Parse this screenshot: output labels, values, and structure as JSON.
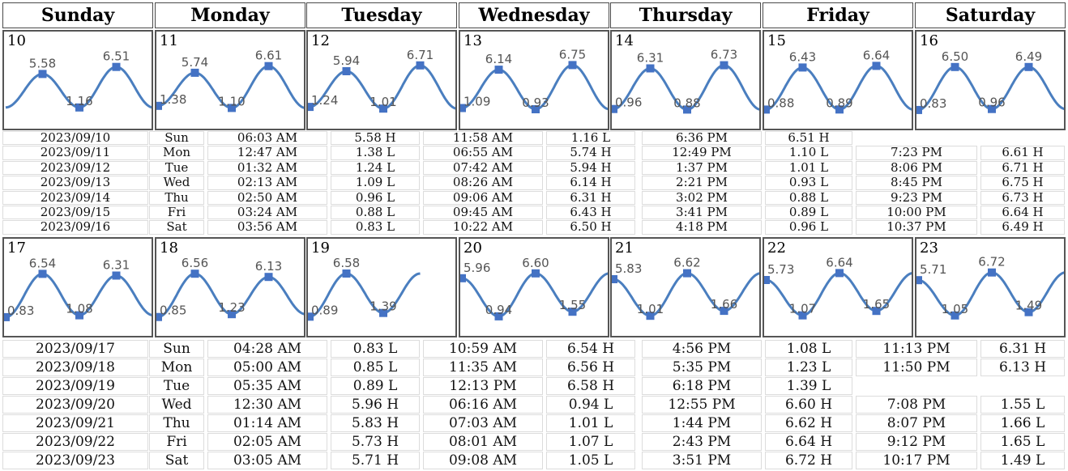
{
  "header": {
    "days": [
      "Sunday",
      "Monday",
      "Tuesday",
      "Wednesday",
      "Thursday",
      "Friday",
      "Saturday"
    ]
  },
  "colors": {
    "curve": "#4a7ebf",
    "marker": "#4472c4",
    "label": "#555555"
  },
  "chart_data": [
    {
      "type": "line",
      "week": 1,
      "panels": [
        {
          "day": "10",
          "points": [
            {
              "value": "5.58",
              "y": 5.58,
              "x": 0.25
            },
            {
              "value": "1.16",
              "y": 1.16,
              "x": 0.5
            },
            {
              "value": "6.51",
              "y": 6.51,
              "x": 0.75
            }
          ]
        },
        {
          "day": "11",
          "points": [
            {
              "value": "1.38",
              "y": 1.38,
              "x": 0
            },
            {
              "value": "5.74",
              "y": 5.74,
              "x": 0.25
            },
            {
              "value": "1.10",
              "y": 1.1,
              "x": 0.5
            },
            {
              "value": "6.61",
              "y": 6.61,
              "x": 0.75
            }
          ]
        },
        {
          "day": "12",
          "points": [
            {
              "value": "1.24",
              "y": 1.24,
              "x": 0
            },
            {
              "value": "5.94",
              "y": 5.94,
              "x": 0.25
            },
            {
              "value": "1.01",
              "y": 1.01,
              "x": 0.5
            },
            {
              "value": "6.71",
              "y": 6.71,
              "x": 0.75
            }
          ]
        },
        {
          "day": "13",
          "points": [
            {
              "value": "1.09",
              "y": 1.09,
              "x": 0
            },
            {
              "value": "6.14",
              "y": 6.14,
              "x": 0.25
            },
            {
              "value": "0.93",
              "y": 0.93,
              "x": 0.5
            },
            {
              "value": "6.75",
              "y": 6.75,
              "x": 0.75
            }
          ]
        },
        {
          "day": "14",
          "points": [
            {
              "value": "0.96",
              "y": 0.96,
              "x": 0
            },
            {
              "value": "6.31",
              "y": 6.31,
              "x": 0.25
            },
            {
              "value": "0.88",
              "y": 0.88,
              "x": 0.5
            },
            {
              "value": "6.73",
              "y": 6.73,
              "x": 0.75
            }
          ]
        },
        {
          "day": "15",
          "points": [
            {
              "value": "0.88",
              "y": 0.88,
              "x": 0
            },
            {
              "value": "6.43",
              "y": 6.43,
              "x": 0.25
            },
            {
              "value": "0.89",
              "y": 0.89,
              "x": 0.5
            },
            {
              "value": "6.64",
              "y": 6.64,
              "x": 0.75
            }
          ]
        },
        {
          "day": "16",
          "points": [
            {
              "value": "0.83",
              "y": 0.83,
              "x": 0
            },
            {
              "value": "6.50",
              "y": 6.5,
              "x": 0.25
            },
            {
              "value": "0.96",
              "y": 0.96,
              "x": 0.5
            },
            {
              "value": "6.49",
              "y": 6.49,
              "x": 0.75
            }
          ]
        }
      ]
    },
    {
      "type": "line",
      "week": 2,
      "panels": [
        {
          "day": "17",
          "points": [
            {
              "value": "0.83",
              "y": 0.83,
              "x": 0
            },
            {
              "value": "6.54",
              "y": 6.54,
              "x": 0.25
            },
            {
              "value": "1.08",
              "y": 1.08,
              "x": 0.5
            },
            {
              "value": "6.31",
              "y": 6.31,
              "x": 0.75
            }
          ]
        },
        {
          "day": "18",
          "points": [
            {
              "value": "0.85",
              "y": 0.85,
              "x": 0
            },
            {
              "value": "6.56",
              "y": 6.56,
              "x": 0.25
            },
            {
              "value": "1.23",
              "y": 1.23,
              "x": 0.5
            },
            {
              "value": "6.13",
              "y": 6.13,
              "x": 0.75
            }
          ]
        },
        {
          "day": "19",
          "points": [
            {
              "value": "0.89",
              "y": 0.89,
              "x": 0
            },
            {
              "value": "6.58",
              "y": 6.58,
              "x": 0.25
            },
            {
              "value": "1.39",
              "y": 1.39,
              "x": 0.5
            }
          ]
        },
        {
          "day": "20",
          "points": [
            {
              "value": "5.96",
              "y": 5.96,
              "x": 0
            },
            {
              "value": "0.94",
              "y": 0.94,
              "x": 0.25
            },
            {
              "value": "6.60",
              "y": 6.6,
              "x": 0.5
            },
            {
              "value": "1.55",
              "y": 1.55,
              "x": 0.75
            }
          ]
        },
        {
          "day": "21",
          "points": [
            {
              "value": "5.83",
              "y": 5.83,
              "x": 0
            },
            {
              "value": "1.01",
              "y": 1.01,
              "x": 0.25
            },
            {
              "value": "6.62",
              "y": 6.62,
              "x": 0.5
            },
            {
              "value": "1.66",
              "y": 1.66,
              "x": 0.75
            }
          ]
        },
        {
          "day": "22",
          "points": [
            {
              "value": "5.73",
              "y": 5.73,
              "x": 0
            },
            {
              "value": "1.07",
              "y": 1.07,
              "x": 0.25
            },
            {
              "value": "6.64",
              "y": 6.64,
              "x": 0.5
            },
            {
              "value": "1.65",
              "y": 1.65,
              "x": 0.75
            }
          ]
        },
        {
          "day": "23",
          "points": [
            {
              "value": "5.71",
              "y": 5.71,
              "x": 0
            },
            {
              "value": "1.05",
              "y": 1.05,
              "x": 0.25
            },
            {
              "value": "6.72",
              "y": 6.72,
              "x": 0.5
            },
            {
              "value": "1.49",
              "y": 1.49,
              "x": 0.75
            }
          ]
        }
      ]
    }
  ],
  "tables": [
    {
      "rows": [
        [
          "2023/09/10",
          "Sun",
          "06:03 AM",
          "5.58 H",
          "11:58 AM",
          "1.16 L",
          "6:36 PM",
          "6.51 H",
          "",
          ""
        ],
        [
          "2023/09/11",
          "Mon",
          "12:47 AM",
          "1.38 L",
          "06:55 AM",
          "5.74 H",
          "12:49 PM",
          "1.10 L",
          "7:23 PM",
          "6.61 H"
        ],
        [
          "2023/09/12",
          "Tue",
          "01:32 AM",
          "1.24 L",
          "07:42 AM",
          "5.94 H",
          "1:37 PM",
          "1.01 L",
          "8:06 PM",
          "6.71 H"
        ],
        [
          "2023/09/13",
          "Wed",
          "02:13 AM",
          "1.09 L",
          "08:26 AM",
          "6.14 H",
          "2:21 PM",
          "0.93 L",
          "8:45 PM",
          "6.75 H"
        ],
        [
          "2023/09/14",
          "Thu",
          "02:50 AM",
          "0.96 L",
          "09:06 AM",
          "6.31 H",
          "3:02 PM",
          "0.88 L",
          "9:23 PM",
          "6.73 H"
        ],
        [
          "2023/09/15",
          "Fri",
          "03:24 AM",
          "0.88 L",
          "09:45 AM",
          "6.43 H",
          "3:41 PM",
          "0.89 L",
          "10:00 PM",
          "6.64 H"
        ],
        [
          "2023/09/16",
          "Sat",
          "03:56 AM",
          "0.83 L",
          "10:22 AM",
          "6.50 H",
          "4:18 PM",
          "0.96 L",
          "10:37 PM",
          "6.49 H"
        ]
      ]
    },
    {
      "rows": [
        [
          "2023/09/17",
          "Sun",
          "04:28 AM",
          "0.83 L",
          "10:59 AM",
          "6.54 H",
          "4:56 PM",
          "1.08 L",
          "11:13 PM",
          "6.31 H"
        ],
        [
          "2023/09/18",
          "Mon",
          "05:00 AM",
          "0.85 L",
          "11:35 AM",
          "6.56 H",
          "5:35 PM",
          "1.23 L",
          "11:50 PM",
          "6.13 H"
        ],
        [
          "2023/09/19",
          "Tue",
          "05:35 AM",
          "0.89 L",
          "12:13 PM",
          "6.58 H",
          "6:18 PM",
          "1.39 L",
          "",
          ""
        ],
        [
          "2023/09/20",
          "Wed",
          "12:30 AM",
          "5.96 H",
          "06:16 AM",
          "0.94 L",
          "12:55 PM",
          "6.60 H",
          "7:08 PM",
          "1.55 L"
        ],
        [
          "2023/09/21",
          "Thu",
          "01:14 AM",
          "5.83 H",
          "07:03 AM",
          "1.01 L",
          "1:44 PM",
          "6.62 H",
          "8:07 PM",
          "1.66 L"
        ],
        [
          "2023/09/22",
          "Fri",
          "02:05 AM",
          "5.73 H",
          "08:01 AM",
          "1.07 L",
          "2:43 PM",
          "6.64 H",
          "9:12 PM",
          "1.65 L"
        ],
        [
          "2023/09/23",
          "Sat",
          "03:05 AM",
          "5.71 H",
          "09:08 AM",
          "1.05 L",
          "3:51 PM",
          "6.72 H",
          "10:17 PM",
          "1.49 L"
        ]
      ]
    }
  ]
}
